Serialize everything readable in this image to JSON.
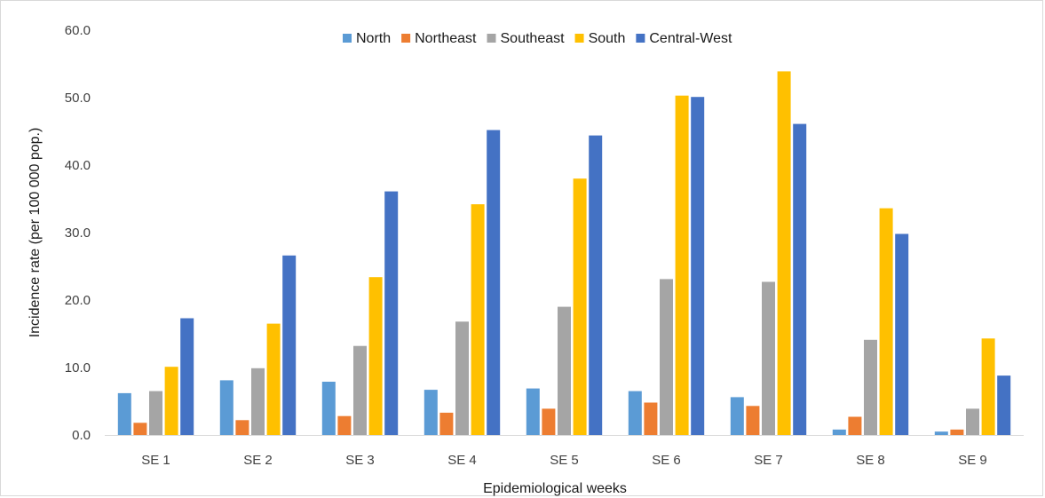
{
  "chart_data": {
    "type": "bar",
    "title": "",
    "xlabel": "Epidemiological weeks",
    "ylabel": "Incidence rate (per 100 000 pop.)",
    "ylim": [
      0,
      60
    ],
    "yticks": [
      "0.0",
      "10.0",
      "20.0",
      "30.0",
      "40.0",
      "50.0",
      "60.0"
    ],
    "grid": false,
    "legend_position": "top",
    "categories": [
      "SE 1",
      "SE 2",
      "SE 3",
      "SE 4",
      "SE 5",
      "SE 6",
      "SE 7",
      "SE 8",
      "SE 9"
    ],
    "series": [
      {
        "name": "North",
        "color": "#5b9bd5",
        "values": [
          6.2,
          8.1,
          7.9,
          6.7,
          6.9,
          6.5,
          5.6,
          0.8,
          0.5
        ]
      },
      {
        "name": "Northeast",
        "color": "#ed7d31",
        "values": [
          1.8,
          2.2,
          2.8,
          3.3,
          3.9,
          4.8,
          4.3,
          2.7,
          0.8
        ]
      },
      {
        "name": "Southeast",
        "color": "#a5a5a5",
        "values": [
          6.5,
          9.9,
          13.2,
          16.8,
          19.0,
          23.1,
          22.7,
          14.1,
          3.9
        ]
      },
      {
        "name": "South",
        "color": "#ffc000",
        "values": [
          10.1,
          16.5,
          23.4,
          34.2,
          38.0,
          50.3,
          53.9,
          33.6,
          14.3
        ]
      },
      {
        "name": "Central-West",
        "color": "#4472c4",
        "values": [
          17.3,
          26.6,
          36.1,
          45.2,
          44.4,
          50.1,
          46.1,
          29.8,
          8.8
        ]
      }
    ]
  }
}
